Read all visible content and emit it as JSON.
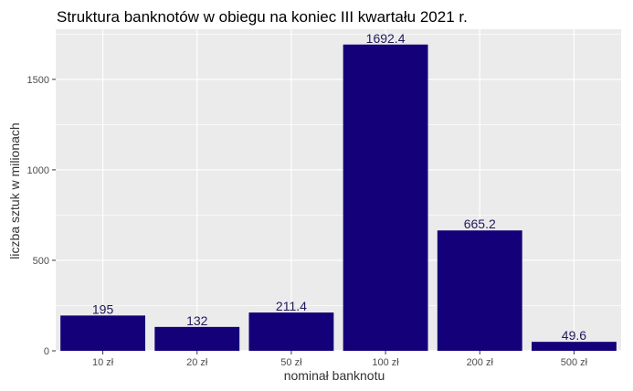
{
  "chart_data": {
    "type": "bar",
    "title": "Struktura banknotów w obiegu na koniec III kwartału 2021 r.",
    "xlabel": "nominał banknotu",
    "ylabel": "liczba sztuk w milionach",
    "categories": [
      "10 zł",
      "20 zł",
      "50 zł",
      "100 zł",
      "200 zł",
      "500 zł"
    ],
    "values": [
      195,
      132,
      211.4,
      1692.4,
      665.2,
      49.6
    ],
    "data_labels": [
      "195",
      "132",
      "211.4",
      "1692.4",
      "665.2",
      "49.6"
    ],
    "y_ticks": [
      0,
      500,
      1000,
      1500
    ],
    "y_tick_labels": [
      "0",
      "500",
      "1000",
      "1500"
    ],
    "ylim": [
      0,
      1777
    ],
    "grid": true,
    "legend": "none",
    "colors": {
      "bar": "#140078",
      "data_label": "#1f1a5c",
      "panel_background": "#ebebeb",
      "grid": "#ffffff"
    }
  }
}
